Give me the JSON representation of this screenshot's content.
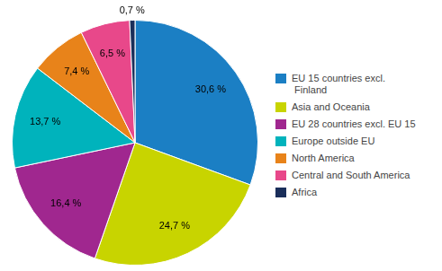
{
  "chart_data": {
    "type": "pie",
    "categories": [
      "EU 15 countries excl.\n Finland",
      "Asia and Oceania",
      "EU 28 countries excl. EU 15",
      "Europe outside EU",
      "North America",
      "Central and South America",
      "Africa"
    ],
    "values": [
      30.6,
      24.7,
      16.4,
      13.7,
      7.4,
      6.5,
      0.7
    ],
    "value_labels": [
      "30,6 %",
      "24,7 %",
      "16,4 %",
      "13,7 %",
      "7,4 %",
      "6,5 %",
      "0,7 %"
    ],
    "colors": [
      "#1b7fc4",
      "#c8d400",
      "#a0278f",
      "#00b3bc",
      "#e8831a",
      "#e8488a",
      "#1a2e5a"
    ],
    "legend": "right",
    "data_labels": true
  }
}
